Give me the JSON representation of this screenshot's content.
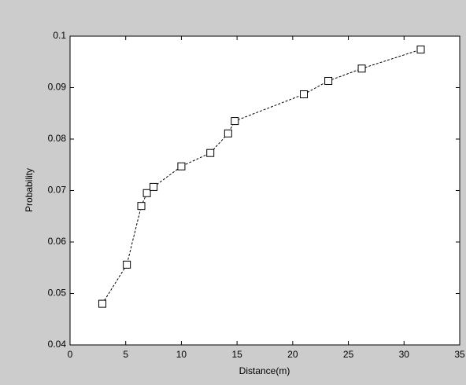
{
  "chart_data": {
    "type": "line",
    "x": [
      2.9,
      5.1,
      6.4,
      6.9,
      7.5,
      10.0,
      12.6,
      14.2,
      14.8,
      21.0,
      23.2,
      26.2,
      31.5
    ],
    "values": [
      0.048,
      0.0556,
      0.067,
      0.0695,
      0.0707,
      0.0747,
      0.0773,
      0.0811,
      0.0835,
      0.0887,
      0.0913,
      0.0937,
      0.0974
    ],
    "color": "#000000",
    "xlabel": "Distance(m)",
    "ylabel": "Probability",
    "xlim": [
      0,
      35
    ],
    "xticks": [
      0,
      5,
      10,
      15,
      20,
      25,
      30,
      35
    ],
    "ylim": [
      0.04,
      0.1
    ],
    "yticks": [
      0.04,
      0.05,
      0.06,
      0.07,
      0.08,
      0.09,
      0.1
    ]
  }
}
